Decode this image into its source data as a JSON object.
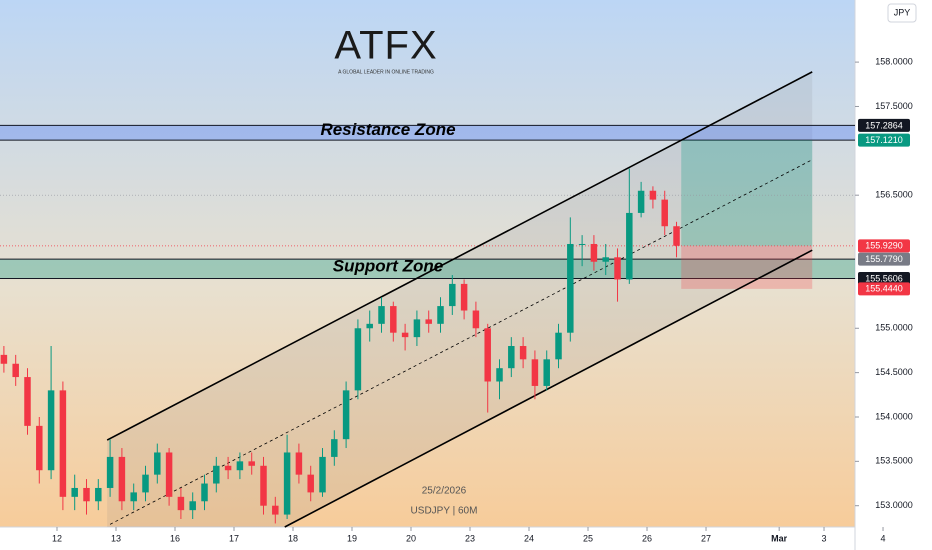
{
  "chart_data": {
    "type": "candlestick",
    "currency": "JPY",
    "logo": "ATFX",
    "logo_tagline": "A GLOBAL LEADER IN ONLINE TRADING",
    "footer_date": "25/2/2026",
    "footer_symbol": "USDJPY | 60M",
    "up_color": "#089981",
    "down_color": "#f23645",
    "xlim": [
      -0.966,
      13.525
    ],
    "ylim": [
      152.76,
      158.7
    ],
    "xticks": [
      {
        "value": 0,
        "label": "12"
      },
      {
        "value": 1,
        "label": "13"
      },
      {
        "value": 2,
        "label": "16"
      },
      {
        "value": 3,
        "label": "17"
      },
      {
        "value": 4,
        "label": "18"
      },
      {
        "value": 5,
        "label": "19"
      },
      {
        "value": 6,
        "label": "20"
      },
      {
        "value": 7,
        "label": "23"
      },
      {
        "value": 8,
        "label": "24"
      },
      {
        "value": 9,
        "label": "25"
      },
      {
        "value": 10,
        "label": "26"
      },
      {
        "value": 11,
        "label": "27"
      },
      {
        "value": 12.24,
        "label": "Mar"
      },
      {
        "value": 13,
        "label": "3"
      },
      {
        "value": 14,
        "label": "4"
      }
    ],
    "yticks": [
      {
        "value": 153.0,
        "label": "153.0000"
      },
      {
        "value": 153.5,
        "label": "153.5000"
      },
      {
        "value": 154.0,
        "label": "154.0000"
      },
      {
        "value": 154.5,
        "label": "154.5000"
      },
      {
        "value": 155.0,
        "label": "155.0000"
      },
      {
        "value": 156.5,
        "label": "156.5000"
      },
      {
        "value": 157.5,
        "label": "157.5000"
      },
      {
        "value": 158.0,
        "label": "158.0000"
      }
    ],
    "x": [
      -0.9,
      -0.7,
      -0.5,
      -0.3,
      -0.1,
      0.1,
      0.3,
      0.5,
      0.7,
      0.9,
      1.1,
      1.3,
      1.5,
      1.7,
      1.9,
      2.1,
      2.3,
      2.5,
      2.7,
      2.9,
      3.1,
      3.3,
      3.5,
      3.7,
      3.9,
      4.1,
      4.3,
      4.5,
      4.7,
      4.9,
      5.1,
      5.3,
      5.5,
      5.7,
      5.9,
      6.1,
      6.3,
      6.5,
      6.7,
      6.9,
      7.1,
      7.3,
      7.5,
      7.7,
      7.9,
      8.1,
      8.3,
      8.5,
      8.7,
      8.9,
      9.1,
      9.3,
      9.5,
      9.7,
      9.9,
      10.1,
      10.3,
      10.5
    ],
    "open": [
      154.7,
      154.6,
      154.45,
      153.9,
      153.4,
      154.3,
      153.1,
      153.2,
      153.05,
      153.2,
      153.55,
      153.05,
      153.15,
      153.35,
      153.6,
      153.1,
      152.95,
      153.05,
      153.25,
      153.45,
      153.4,
      153.5,
      153.45,
      153.0,
      152.9,
      153.6,
      153.35,
      153.15,
      153.55,
      153.75,
      154.3,
      155.0,
      155.05,
      155.25,
      154.95,
      154.9,
      155.1,
      155.05,
      155.25,
      155.5,
      155.2,
      155.0,
      154.4,
      154.55,
      154.8,
      154.65,
      154.35,
      154.65,
      154.95,
      155.95,
      155.95,
      155.75,
      155.8,
      155.55,
      156.3,
      156.55,
      156.45,
      156.15
    ],
    "high": [
      154.8,
      154.7,
      154.55,
      154.0,
      154.8,
      154.4,
      153.35,
      153.3,
      153.3,
      153.75,
      153.65,
      153.25,
      153.45,
      153.7,
      153.65,
      153.2,
      153.15,
      153.35,
      153.55,
      153.55,
      153.6,
      153.6,
      153.55,
      153.1,
      153.8,
      153.7,
      153.45,
      153.65,
      153.85,
      154.4,
      155.1,
      155.2,
      155.35,
      155.3,
      155.05,
      155.2,
      155.2,
      155.35,
      155.6,
      155.55,
      155.3,
      155.05,
      154.65,
      154.9,
      154.9,
      154.75,
      154.75,
      155.05,
      156.25,
      156.05,
      156.05,
      155.95,
      155.9,
      156.8,
      156.65,
      156.6,
      156.55,
      156.2
    ],
    "low": [
      154.5,
      154.35,
      153.8,
      153.25,
      153.3,
      152.95,
      152.95,
      152.9,
      152.95,
      153.1,
      152.95,
      152.95,
      153.05,
      153.25,
      153.0,
      152.85,
      152.85,
      152.95,
      153.15,
      153.3,
      153.3,
      153.35,
      152.9,
      152.8,
      152.85,
      153.25,
      153.05,
      153.1,
      153.45,
      153.65,
      154.2,
      154.85,
      154.95,
      154.85,
      154.75,
      154.8,
      154.95,
      154.95,
      155.15,
      155.1,
      154.9,
      154.05,
      154.2,
      154.45,
      154.55,
      154.2,
      154.3,
      154.55,
      154.85,
      155.7,
      155.65,
      155.6,
      155.3,
      155.5,
      156.25,
      156.35,
      156.05,
      155.8
    ],
    "close": [
      154.6,
      154.45,
      153.9,
      153.4,
      154.3,
      153.1,
      153.2,
      153.05,
      153.2,
      153.55,
      153.05,
      153.15,
      153.35,
      153.6,
      153.1,
      152.95,
      153.05,
      153.25,
      153.45,
      153.4,
      153.5,
      153.45,
      153.0,
      152.9,
      153.6,
      153.35,
      153.15,
      153.55,
      153.75,
      154.3,
      155.0,
      155.05,
      155.25,
      154.95,
      154.9,
      155.1,
      155.05,
      155.25,
      155.5,
      155.2,
      155.0,
      154.4,
      154.55,
      154.8,
      154.65,
      154.35,
      154.65,
      154.95,
      155.95,
      155.95,
      155.75,
      155.8,
      155.55,
      156.3,
      156.55,
      156.45,
      156.15,
      155.93
    ],
    "zones": [
      {
        "label": "Resistance Zone",
        "top": 157.2864,
        "bottom": 157.121,
        "color": "rgba(41,98,255,0.28)"
      },
      {
        "label": "Support Zone",
        "top": 155.779,
        "bottom": 155.5606,
        "color": "rgba(8,153,129,0.32)"
      }
    ],
    "position": {
      "x": [
        10.58,
        12.8
      ],
      "target": 157.121,
      "entry": 155.929,
      "stop": 155.444
    },
    "trend_lines": [
      {
        "x": [
          0.85,
          12.8
        ],
        "y": [
          153.74,
          157.89
        ],
        "style": "solid"
      },
      {
        "x": [
          3.86,
          12.8
        ],
        "y": [
          152.76,
          155.88
        ],
        "style": "solid"
      },
      {
        "x": [
          0.9,
          12.8
        ],
        "y": [
          152.79,
          156.9
        ],
        "style": "dashed"
      }
    ],
    "levels": [
      {
        "value": 156.5,
        "color": "#9598a1"
      }
    ],
    "price_labels": [
      {
        "value": 157.2864,
        "label": "157.2864",
        "color": "#131722"
      },
      {
        "value": 157.121,
        "label": "157.1210",
        "color": "#089981"
      },
      {
        "value": 155.929,
        "label": "155.9290",
        "color": "#f23645",
        "dotted": true
      },
      {
        "value": 155.779,
        "label": "155.7790",
        "color": "#787b86"
      },
      {
        "value": 155.5606,
        "label": "155.5606",
        "color": "#131722"
      },
      {
        "value": 155.444,
        "label": "155.4440",
        "color": "#f23645"
      }
    ]
  }
}
